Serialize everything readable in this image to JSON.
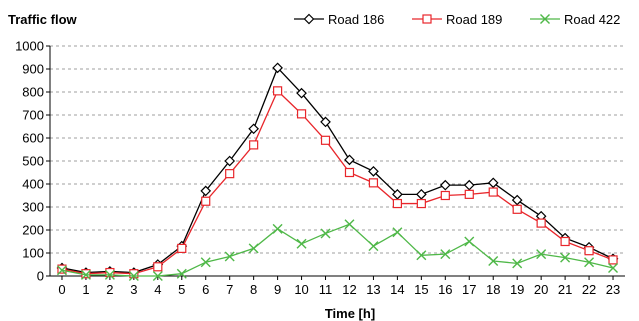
{
  "chart_data": {
    "type": "line",
    "title": "Traffic flow",
    "xlabel": "Time [h]",
    "ylabel": "",
    "x": [
      0,
      1,
      2,
      3,
      4,
      5,
      6,
      7,
      8,
      9,
      10,
      11,
      12,
      13,
      14,
      15,
      16,
      17,
      18,
      19,
      20,
      21,
      22,
      23
    ],
    "ylim": [
      0,
      1000
    ],
    "yticks": [
      0,
      100,
      200,
      300,
      400,
      500,
      600,
      700,
      800,
      900,
      1000
    ],
    "grid": "horizontal-dashed",
    "legend_position": "top-right",
    "series": [
      {
        "name": "Road 186",
        "color": "#000000",
        "marker": "diamond",
        "values": [
          35,
          15,
          20,
          15,
          50,
          130,
          370,
          500,
          640,
          905,
          795,
          670,
          505,
          455,
          355,
          355,
          395,
          395,
          405,
          330,
          260,
          165,
          125,
          75
        ]
      },
      {
        "name": "Road 189",
        "color": "#e8262b",
        "marker": "square",
        "values": [
          30,
          10,
          15,
          10,
          40,
          120,
          325,
          445,
          570,
          805,
          705,
          590,
          450,
          405,
          315,
          315,
          350,
          355,
          365,
          290,
          230,
          150,
          110,
          70
        ]
      },
      {
        "name": "Road 422",
        "color": "#4fb848",
        "marker": "x",
        "values": [
          25,
          5,
          5,
          0,
          0,
          10,
          60,
          85,
          120,
          205,
          140,
          185,
          225,
          130,
          190,
          90,
          95,
          150,
          65,
          55,
          95,
          80,
          60,
          35
        ]
      }
    ]
  }
}
